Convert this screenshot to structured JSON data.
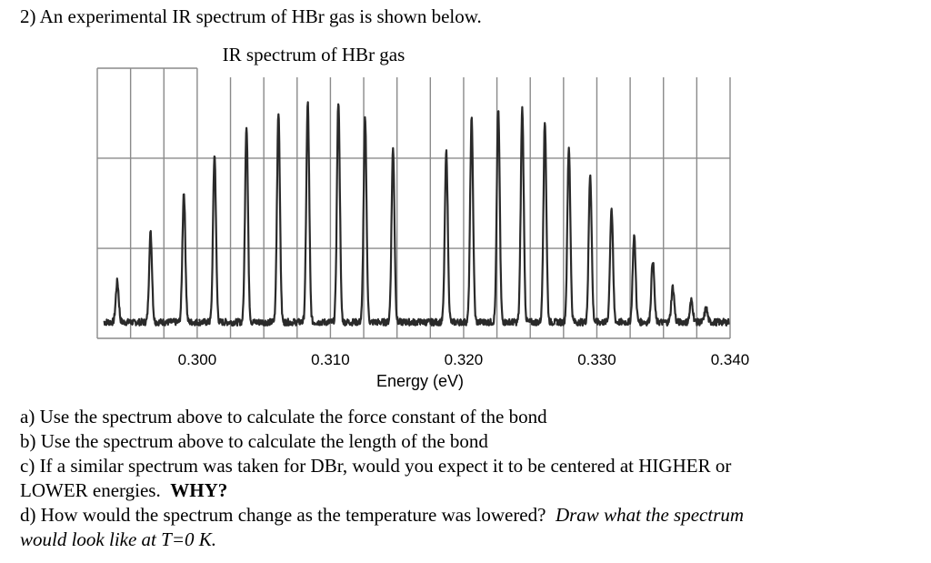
{
  "question": {
    "heading": "2) An experimental IR spectrum of HBr gas is shown below.",
    "parts": {
      "a": "a) Use the spectrum above to calculate the force constant of the bond",
      "b": "b) Use the spectrum above to calculate the length of the bond",
      "c1": "c) If a similar spectrum was taken for DBr, would you expect it to be centered at HIGHER or",
      "c2": "LOWER energies.",
      "c2_bold": "WHY?",
      "d1": "d) How would the spectrum change as the temperature was lowered?",
      "d1_italic": "Draw what the spectrum",
      "d2_italic": "would look like at T=0 K."
    }
  },
  "chart_data": {
    "type": "line",
    "title": "IR spectrum of HBr gas",
    "xlabel": "Energy (eV)",
    "ylabel": "",
    "xlim": [
      0.2925,
      0.34
    ],
    "ylim": [
      0,
      1
    ],
    "x_ticks": [
      0.3,
      0.31,
      0.32,
      0.33,
      0.34
    ],
    "x_tick_labels": [
      "0.300",
      "0.310",
      "0.320",
      "0.330",
      "0.340"
    ],
    "x_grid_step": 0.0025,
    "y_grid": [
      0.333,
      0.667
    ],
    "grid": true,
    "baseline": 0.06,
    "line_color": "#2a2a2a",
    "grid_color": "#8a8a8a",
    "peaks": {
      "energy": [
        0.294,
        0.2965,
        0.299,
        0.3013,
        0.3037,
        0.3061,
        0.3083,
        0.3106,
        0.3126,
        0.3147,
        0.3187,
        0.3206,
        0.3226,
        0.3244,
        0.3261,
        0.3279,
        0.3295,
        0.3311,
        0.3328,
        0.3342,
        0.3357,
        0.3371,
        0.3382
      ],
      "intensity": [
        0.21,
        0.39,
        0.54,
        0.68,
        0.79,
        0.84,
        0.87,
        0.88,
        0.81,
        0.7,
        0.69,
        0.81,
        0.85,
        0.85,
        0.8,
        0.71,
        0.61,
        0.48,
        0.38,
        0.29,
        0.19,
        0.14,
        0.11
      ]
    }
  }
}
